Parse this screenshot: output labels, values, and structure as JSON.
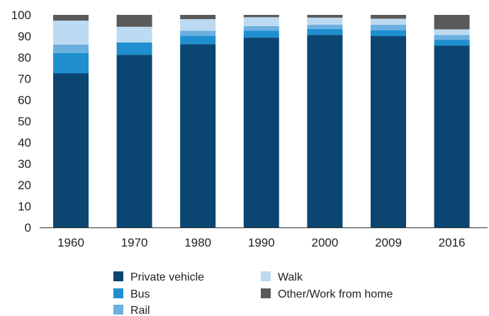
{
  "chart_data": {
    "type": "bar",
    "stacked": true,
    "title": "",
    "xlabel": "",
    "ylabel": "",
    "ylim": [
      0,
      100
    ],
    "yticks": [
      0,
      10,
      20,
      30,
      40,
      50,
      60,
      70,
      80,
      90,
      100
    ],
    "grid": false,
    "legend_position": "bottom",
    "categories": [
      "1960",
      "1970",
      "1980",
      "1990",
      "2000",
      "2009",
      "2016"
    ],
    "series": [
      {
        "name": "Private vehicle",
        "color": "#0b4571",
        "values": [
          72.5,
          81.2,
          86.2,
          89.3,
          90.6,
          90.0,
          85.5
        ]
      },
      {
        "name": "Bus",
        "color": "#1f8fcf",
        "values": [
          9.5,
          5.8,
          4.0,
          3.2,
          2.8,
          2.8,
          2.8
        ]
      },
      {
        "name": "Rail",
        "color": "#6cb0e0",
        "values": [
          4.0,
          0.0,
          2.3,
          2.2,
          2.0,
          2.6,
          2.2
        ]
      },
      {
        "name": "Walk",
        "color": "#bcdaf1",
        "values": [
          11.3,
          7.4,
          5.5,
          4.2,
          3.3,
          2.8,
          2.7
        ]
      },
      {
        "name": "Other/Work from home",
        "color": "#5a5a5a",
        "values": [
          2.7,
          5.6,
          2.0,
          1.1,
          1.3,
          1.8,
          6.8
        ]
      }
    ]
  }
}
